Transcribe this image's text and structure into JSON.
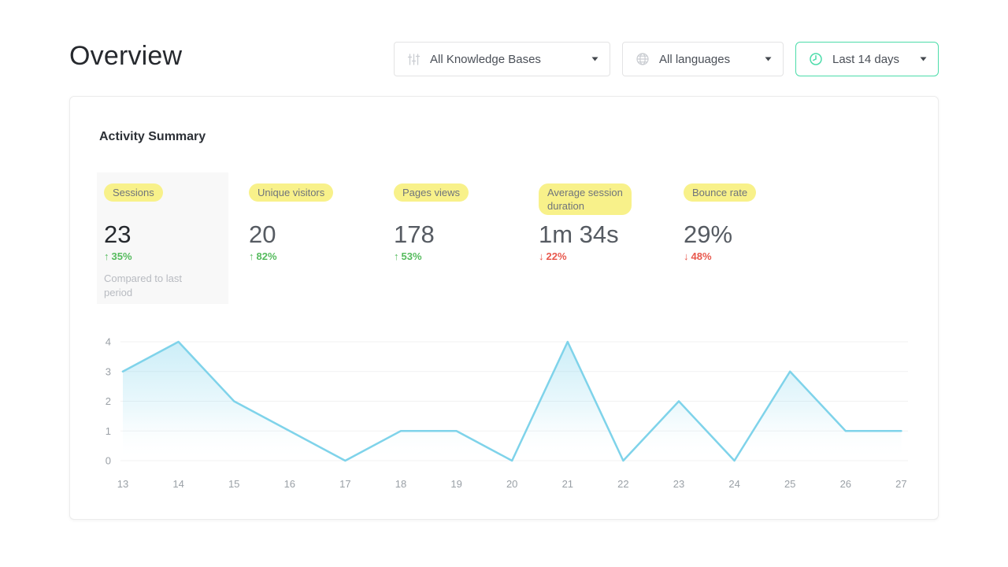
{
  "page": {
    "title": "Overview"
  },
  "filters": {
    "knowledge_bases": {
      "label": "All Knowledge Bases",
      "icon": "sliders-icon"
    },
    "languages": {
      "label": "All languages",
      "icon": "globe-icon"
    },
    "date_range": {
      "label": "Last 14 days",
      "icon": "clock-icon",
      "accent": "#4cdcaa"
    }
  },
  "card": {
    "title": "Activity Summary",
    "metrics": [
      {
        "label": "Sessions",
        "value": "23",
        "change": "35%",
        "direction": "up",
        "selected": true,
        "note": "Compared to last period"
      },
      {
        "label": "Unique visitors",
        "value": "20",
        "change": "82%",
        "direction": "up"
      },
      {
        "label": "Pages views",
        "value": "178",
        "change": "53%",
        "direction": "up"
      },
      {
        "label": "Average session duration",
        "value": "1m 34s",
        "change": "22%",
        "direction": "down"
      },
      {
        "label": "Bounce rate",
        "value": "29%",
        "change": "48%",
        "direction": "down"
      }
    ]
  },
  "chart_data": {
    "type": "area",
    "title": "",
    "x": [
      13,
      14,
      15,
      16,
      17,
      18,
      19,
      20,
      21,
      22,
      23,
      24,
      25,
      26,
      27
    ],
    "values": [
      3,
      4,
      2,
      1,
      0,
      1,
      1,
      0,
      4,
      0,
      2,
      0,
      3,
      1,
      1
    ],
    "xlabel": "",
    "ylabel": "",
    "ylim": [
      0,
      4
    ],
    "yticks": [
      0,
      1,
      2,
      3,
      4
    ],
    "grid": true,
    "legend": "none",
    "line_color": "#7fd3ea",
    "area_top_color": "#8ed9ef",
    "grid_color": "#f1f1f2",
    "tick_color": "#9aa0a6"
  },
  "colors": {
    "positive": "#55bb5d",
    "negative": "#e8584d",
    "highlight": "#f8f18a",
    "accent_green": "#4cdcaa"
  },
  "icons": {
    "up_arrow": "↑",
    "down_arrow": "↓"
  }
}
